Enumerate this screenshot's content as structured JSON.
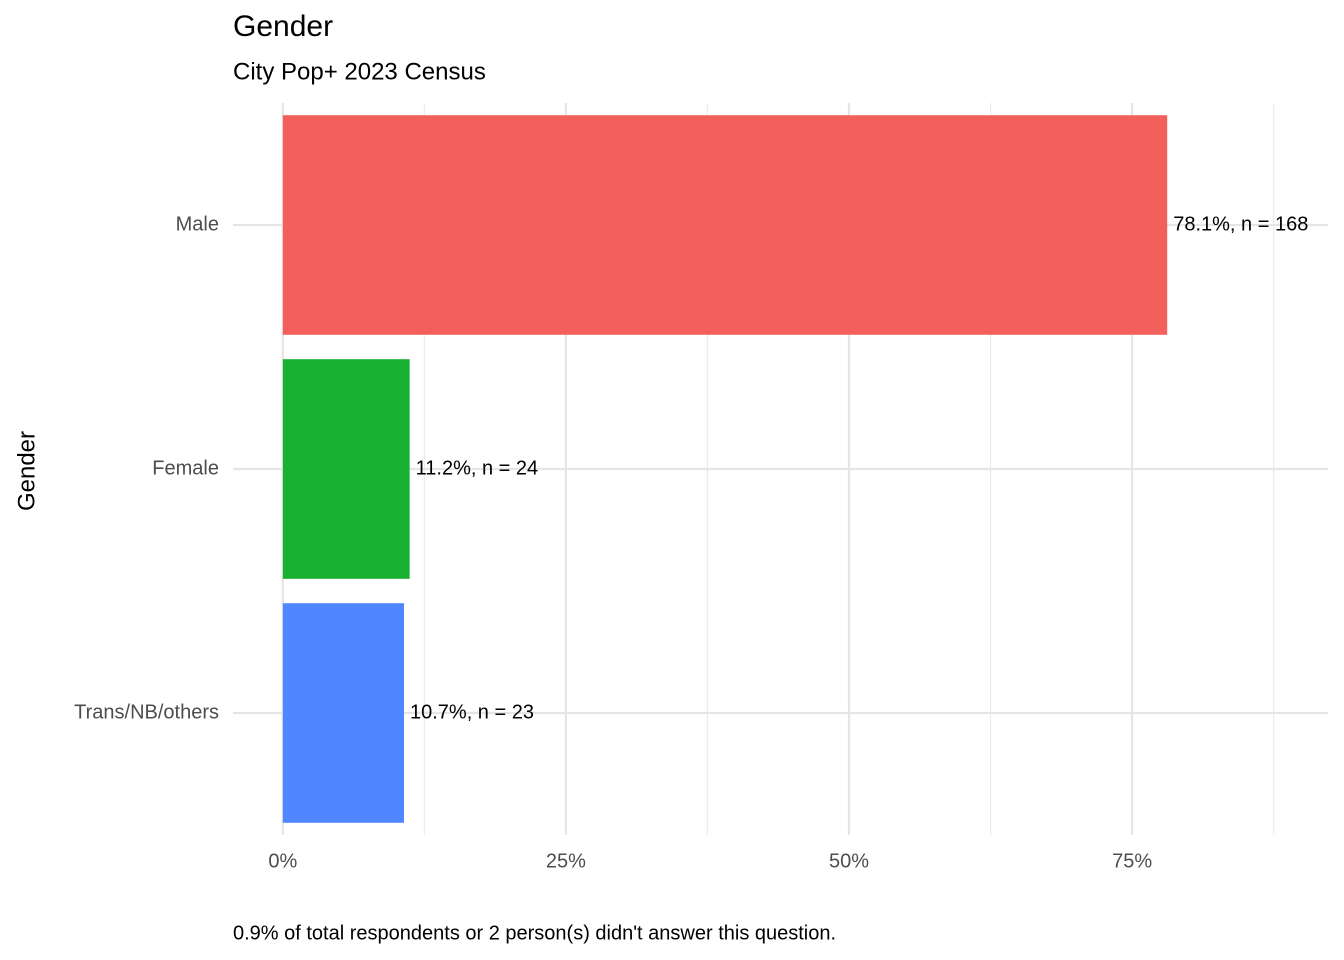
{
  "chart_data": {
    "type": "hbar",
    "title": "Gender",
    "subtitle": "City Pop+ 2023 Census",
    "y_label": "Gender",
    "caption": "0.9% of total respondents or 2 person(s) didn't answer this question.",
    "categories": [
      "Male",
      "Female",
      "Trans/NB/others"
    ],
    "values": [
      78.1,
      11.2,
      10.7
    ],
    "value_labels": [
      "78.1%, n = 168",
      "11.2%, n = 24",
      "10.7%, n = 23"
    ],
    "colors": [
      "#f3605b",
      "#18b12f",
      "#5086ff"
    ],
    "xlim": [
      -4.4,
      92.3
    ],
    "xticks": [
      {
        "value": 0,
        "label": "0%"
      },
      {
        "value": 25,
        "label": "25%"
      },
      {
        "value": 50,
        "label": "50%"
      },
      {
        "value": 75,
        "label": "75%"
      }
    ],
    "minor_xticks": [
      12.5,
      37.5,
      62.5,
      87.5
    ],
    "grid": true
  }
}
